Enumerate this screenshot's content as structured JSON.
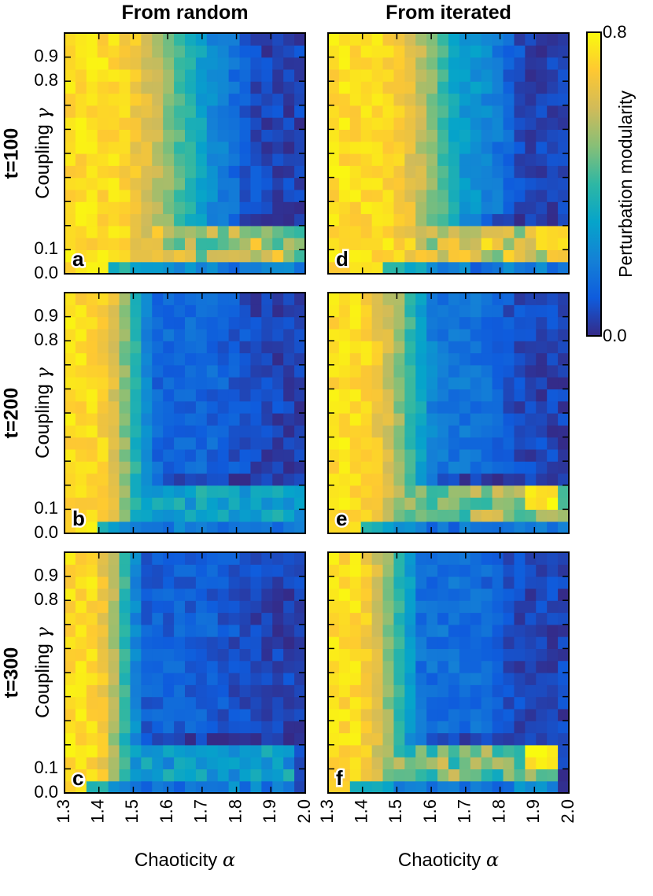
{
  "colors": {
    "colormap": [
      "#352a87",
      "#0f5cdd",
      "#1481d6",
      "#06a4ca",
      "#2eb7a4",
      "#87bf77",
      "#d1bb59",
      "#fec832",
      "#f9fb0e"
    ]
  },
  "chart_data": {
    "type": "heatmap",
    "column_titles": [
      "From random",
      "From iterated"
    ],
    "row_titles": [
      "t=100",
      "t=200",
      "t=300"
    ],
    "xlabel": {
      "text": "Chaoticity ",
      "symbol": "α"
    },
    "ylabel": {
      "text": "Coupling ",
      "symbol": "γ"
    },
    "x_ticks": [
      "1.3",
      "1.4",
      "1.5",
      "1.6",
      "1.7",
      "1.8",
      "1.9",
      "2.0"
    ],
    "x_range": [
      1.3,
      2.0
    ],
    "y_tick_labels": [
      {
        "value": 0.9,
        "label": "0.9"
      },
      {
        "value": 0.8,
        "label": "0.8"
      },
      {
        "value": 0.1,
        "label": "0.1"
      },
      {
        "value": 0.0,
        "label": "0.0"
      }
    ],
    "y_minor_ticks": [
      0.2,
      0.3,
      0.4,
      0.5,
      0.6,
      0.7
    ],
    "y_range": [
      0.0,
      1.0
    ],
    "colorbar": {
      "label": "Perturbation modularity",
      "min": 0.0,
      "max": 0.8,
      "min_label": "0.0",
      "max_label": "0.8"
    },
    "grid_size": {
      "nx": 22,
      "ny": 20
    },
    "panels": [
      {
        "id": "a",
        "letter": "a",
        "row": 0,
        "col": 0,
        "t": 100,
        "init": "random",
        "alpha_yellow": 1.47,
        "alpha_blue": 1.85,
        "high_coupling_floor": 0.18,
        "low_band_value": 0.56,
        "low_band_end": 2.0,
        "hotspot": null
      },
      {
        "id": "d",
        "letter": "d",
        "row": 0,
        "col": 1,
        "t": 100,
        "init": "iterated",
        "alpha_yellow": 1.5,
        "alpha_blue": 1.8,
        "high_coupling_floor": 0.22,
        "low_band_value": 0.62,
        "low_band_end": 2.0,
        "hotspot": [
          1.95,
          0.76
        ]
      },
      {
        "id": "b",
        "letter": "b",
        "row": 1,
        "col": 0,
        "t": 200,
        "init": "random",
        "alpha_yellow": 1.43,
        "alpha_blue": 1.6,
        "high_coupling_floor": 0.08,
        "low_band_value": 0.3,
        "low_band_end": 2.0,
        "hotspot": null
      },
      {
        "id": "e",
        "letter": "e",
        "row": 1,
        "col": 1,
        "t": 200,
        "init": "iterated",
        "alpha_yellow": 1.43,
        "alpha_blue": 1.68,
        "high_coupling_floor": 0.12,
        "low_band_value": 0.5,
        "low_band_end": 2.0,
        "hotspot": [
          1.93,
          0.78
        ]
      },
      {
        "id": "c",
        "letter": "c",
        "row": 2,
        "col": 0,
        "t": 300,
        "init": "random",
        "alpha_yellow": 1.42,
        "alpha_blue": 1.56,
        "high_coupling_floor": 0.06,
        "low_band_value": 0.28,
        "low_band_end": 1.98,
        "hotspot": null
      },
      {
        "id": "f",
        "letter": "f",
        "row": 2,
        "col": 1,
        "t": 300,
        "init": "iterated",
        "alpha_yellow": 1.42,
        "alpha_blue": 1.62,
        "high_coupling_floor": 0.1,
        "low_band_value": 0.48,
        "low_band_end": 1.98,
        "hotspot": [
          1.93,
          0.78
        ]
      }
    ]
  }
}
